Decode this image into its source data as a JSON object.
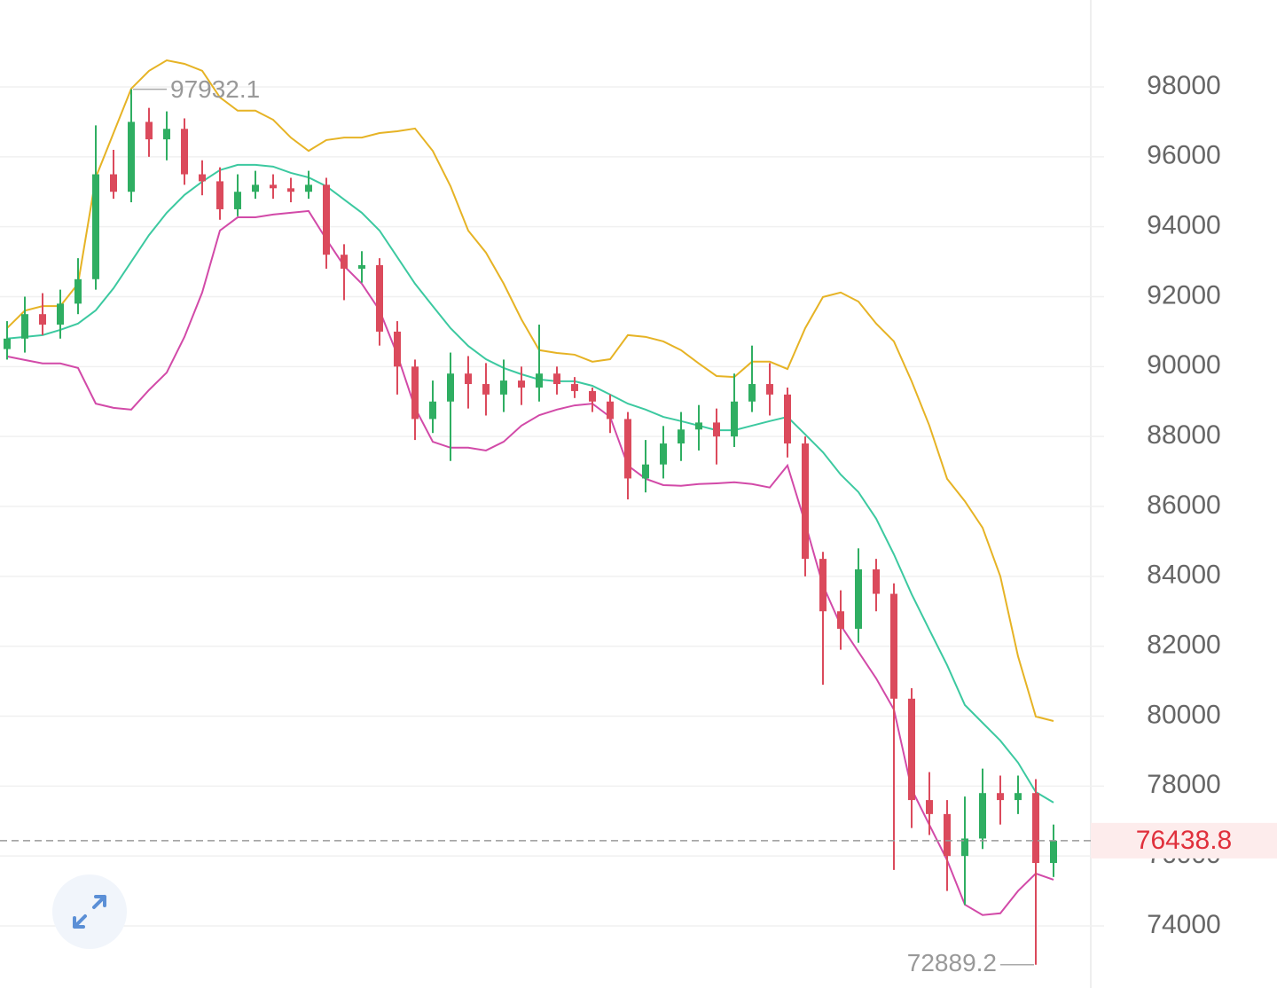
{
  "chart_data": {
    "type": "candlestick",
    "ylim": [
      72224,
      100486
    ],
    "yticks": [
      74000,
      76000,
      78000,
      80000,
      82000,
      84000,
      86000,
      88000,
      90000,
      92000,
      94000,
      96000,
      98000
    ],
    "grid": true,
    "up_color": "#2fae62",
    "down_color": "#db4a5c",
    "open": [
      90500,
      90800,
      91500,
      91200,
      91800,
      92500,
      95500,
      95000,
      97000,
      96500,
      96800,
      95500,
      95300,
      94500,
      95000,
      95200,
      95100,
      95000,
      95200,
      93200,
      92800,
      92900,
      91000,
      90000,
      88500,
      89000,
      89800,
      89500,
      89200,
      89600,
      89400,
      89800,
      89500,
      89300,
      89000,
      88500,
      86800,
      87200,
      87800,
      88200,
      88400,
      88000,
      89000,
      89500,
      89200,
      87800,
      84500,
      83000,
      82500,
      84200,
      83500,
      80500,
      77600,
      77200,
      76000,
      76500,
      77800,
      77600,
      77800,
      75800
    ],
    "high": [
      91300,
      92000,
      92100,
      92200,
      93100,
      96900,
      96200,
      97932.1,
      97400,
      97300,
      97100,
      95900,
      95700,
      95500,
      95600,
      95500,
      95400,
      95600,
      95400,
      93500,
      93300,
      93100,
      91300,
      90200,
      89600,
      90400,
      90300,
      90100,
      90200,
      90000,
      91200,
      90000,
      89700,
      89400,
      89200,
      88700,
      87900,
      88300,
      88700,
      88900,
      88800,
      89800,
      90600,
      90100,
      89400,
      88000,
      84700,
      83600,
      84800,
      84500,
      83800,
      80800,
      78400,
      77600,
      77700,
      78500,
      78300,
      78300,
      78200,
      76900
    ],
    "low": [
      90200,
      90400,
      90900,
      90800,
      91500,
      92200,
      94800,
      94700,
      96000,
      95900,
      95200,
      94900,
      94200,
      94300,
      94800,
      94800,
      94700,
      94800,
      92800,
      91900,
      92400,
      90600,
      89200,
      87900,
      88100,
      87300,
      88800,
      88600,
      88700,
      88900,
      89000,
      89200,
      89100,
      88700,
      88100,
      86200,
      86400,
      86800,
      87300,
      87600,
      87200,
      87700,
      88700,
      88600,
      87400,
      84000,
      80900,
      81900,
      82100,
      83000,
      75600,
      76800,
      76600,
      75000,
      74600,
      76200,
      76900,
      77200,
      72889.2,
      75400
    ],
    "close": [
      90800,
      91500,
      91200,
      91800,
      92500,
      95500,
      95000,
      97000,
      96500,
      96800,
      95500,
      95300,
      94500,
      95000,
      95200,
      95100,
      95000,
      95200,
      93200,
      92800,
      92900,
      91000,
      90000,
      88500,
      89000,
      89800,
      89500,
      89200,
      89600,
      89400,
      89800,
      89500,
      89300,
      89000,
      88500,
      86800,
      87200,
      87800,
      88200,
      88400,
      88000,
      89000,
      89500,
      89200,
      87800,
      84500,
      83000,
      82500,
      84200,
      83500,
      80500,
      77600,
      77200,
      76000,
      76500,
      77800,
      77600,
      77800,
      75800,
      76438.8
    ],
    "lines": [
      {
        "color": "#e6b325",
        "values": [
          91100,
          91600,
          91730,
          91730,
          92370,
          95410,
          96680,
          97950,
          98460,
          98760,
          98660,
          98460,
          97700,
          97320,
          97320,
          97060,
          96550,
          96170,
          96480,
          96550,
          96550,
          96680,
          96730,
          96810,
          96170,
          95160,
          93890,
          93260,
          92370,
          91350,
          90470,
          90390,
          90340,
          90140,
          90210,
          90900,
          90850,
          90720,
          90470,
          90090,
          89730,
          89700,
          90140,
          90140,
          89930,
          91100,
          91990,
          92120,
          91860,
          91230,
          90720,
          89580,
          88310,
          86790,
          86150,
          85390,
          84000,
          81710,
          79990,
          79860
        ]
      },
      {
        "color": "#3cc9a0",
        "values": [
          90800,
          90850,
          90900,
          91050,
          91230,
          91610,
          92240,
          93000,
          93760,
          94400,
          94910,
          95290,
          95620,
          95770,
          95770,
          95720,
          95540,
          95410,
          95160,
          94780,
          94400,
          93890,
          93130,
          92370,
          91730,
          91100,
          90590,
          90210,
          89960,
          89780,
          89630,
          89580,
          89580,
          89450,
          89200,
          88940,
          88770,
          88560,
          88440,
          88310,
          88180,
          88180,
          88310,
          88440,
          88560,
          88060,
          87550,
          86910,
          86410,
          85650,
          84630,
          83490,
          82470,
          81460,
          80320,
          79810,
          79300,
          78670,
          77830,
          77530
        ]
      },
      {
        "color": "#d24aa8",
        "values": [
          90290,
          90190,
          90090,
          90090,
          89960,
          88940,
          88820,
          88770,
          89330,
          89830,
          90850,
          92120,
          93890,
          94270,
          94270,
          94350,
          94400,
          94450,
          93640,
          92880,
          92370,
          91610,
          90340,
          88820,
          87850,
          87680,
          87680,
          87600,
          87850,
          88310,
          88610,
          88770,
          88890,
          88940,
          88560,
          87170,
          86790,
          86610,
          86590,
          86640,
          86660,
          86690,
          86640,
          86540,
          87170,
          85520,
          83740,
          82600,
          81840,
          81080,
          80190,
          77910,
          76890,
          75880,
          74610,
          74310,
          74360,
          75000,
          75500,
          75320
        ]
      }
    ]
  }
}
